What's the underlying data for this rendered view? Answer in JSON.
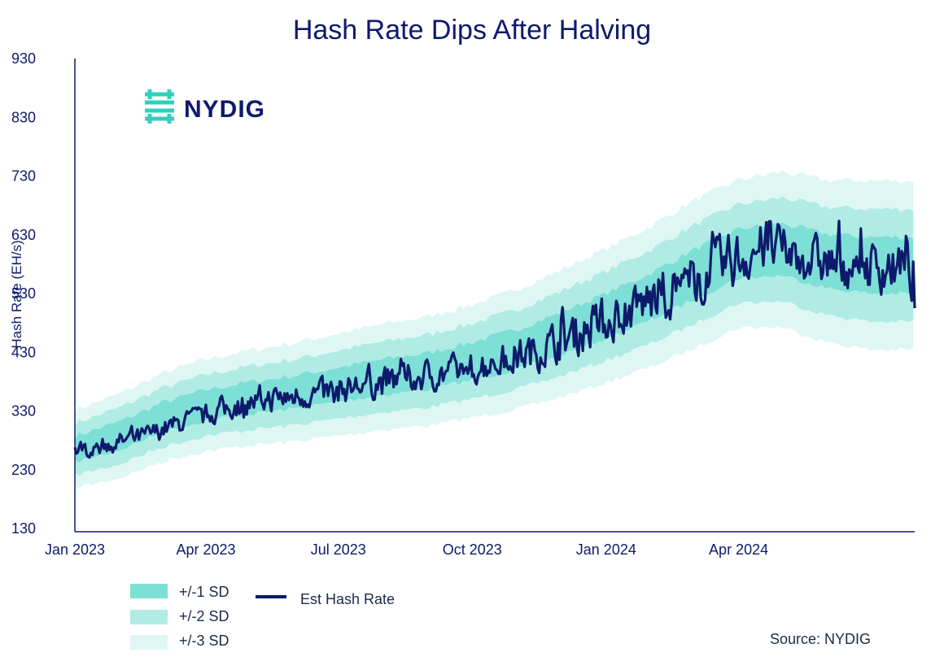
{
  "colors": {
    "navy": "#0d1a6b",
    "sd1": "#7ddfd6",
    "sd2": "#b0ece4",
    "sd3": "#dff7f3",
    "logo_teal": "#2fd1bd"
  },
  "logo": {
    "text": "NYDIG",
    "icon": "nydig-logo-icon"
  },
  "source": "Source: NYDIG",
  "chart_data": {
    "type": "line",
    "title": "Hash Rate Dips After Halving",
    "xlabel": "",
    "ylabel": "Hash Rate (EH/s)",
    "ylim": [
      130,
      930
    ],
    "yticks": [
      130,
      230,
      330,
      430,
      530,
      630,
      730,
      830,
      930
    ],
    "xlim": [
      "2023-01-01",
      "2024-07-31"
    ],
    "xticks": [
      {
        "date": "2023-01-01",
        "label": "Jan 2023"
      },
      {
        "date": "2023-04-01",
        "label": "Apr 2023"
      },
      {
        "date": "2023-07-01",
        "label": "Jul 2023"
      },
      {
        "date": "2023-10-01",
        "label": "Oct 2023"
      },
      {
        "date": "2024-01-01",
        "label": "Jan 2024"
      },
      {
        "date": "2024-04-01",
        "label": "Apr 2024"
      }
    ],
    "grid": false,
    "legend_position": "bottom-left",
    "mean_series": {
      "x": [
        "2023-01-01",
        "2023-02-01",
        "2023-03-01",
        "2023-04-01",
        "2023-05-01",
        "2023-06-01",
        "2023-07-01",
        "2023-08-01",
        "2023-09-01",
        "2023-10-01",
        "2023-11-01",
        "2023-12-01",
        "2024-01-01",
        "2024-02-01",
        "2024-03-01",
        "2024-04-01",
        "2024-05-01",
        "2024-06-01",
        "2024-07-01",
        "2024-07-31"
      ],
      "mean": [
        265,
        288,
        318,
        340,
        352,
        362,
        375,
        388,
        398,
        415,
        435,
        462,
        492,
        525,
        562,
        598,
        605,
        585,
        578,
        578
      ],
      "sd": [
        22,
        24,
        25,
        26,
        27,
        28,
        29,
        30,
        31,
        32,
        34,
        36,
        38,
        40,
        42,
        42,
        44,
        46,
        48,
        48
      ]
    },
    "series": [
      {
        "name": "Est Hash Rate",
        "anchors_x": [
          "2023-01-01",
          "2023-02-15",
          "2023-03-15",
          "2023-04-20",
          "2023-05-15",
          "2023-06-20",
          "2023-07-15",
          "2023-08-15",
          "2023-09-15",
          "2023-10-15",
          "2023-11-15",
          "2023-12-15",
          "2024-01-15",
          "2024-02-15",
          "2024-03-15",
          "2024-04-10",
          "2024-04-20",
          "2024-05-15",
          "2024-06-15",
          "2024-07-15",
          "2024-07-31"
        ],
        "anchors_y": [
          262,
          285,
          310,
          338,
          350,
          360,
          372,
          385,
          395,
          412,
          433,
          465,
          500,
          535,
          570,
          600,
          610,
          590,
          578,
          575,
          560
        ],
        "amplitude": [
          20,
          22,
          24,
          28,
          30,
          32,
          34,
          36,
          38,
          40,
          44,
          52,
          58,
          62,
          64,
          64,
          60,
          56,
          58,
          60,
          62
        ],
        "last_value": 505
      }
    ],
    "legend": [
      {
        "label": "+/-1 SD",
        "swatch": "sd1"
      },
      {
        "label": "+/-2 SD",
        "swatch": "sd2"
      },
      {
        "label": "+/-3 SD",
        "swatch": "sd3"
      },
      {
        "label": "Est Hash Rate",
        "swatch": "line"
      }
    ]
  }
}
